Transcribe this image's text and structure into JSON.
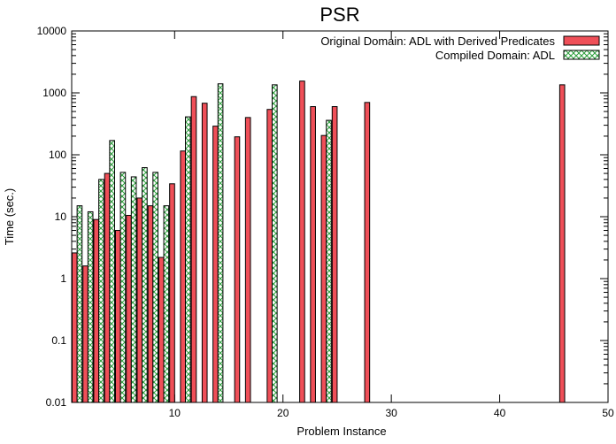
{
  "chart_data": {
    "type": "bar",
    "title": "PSR",
    "xlabel": "Problem Instance",
    "ylabel": "Time (sec.)",
    "xlim": [
      0.5,
      50
    ],
    "ylim": [
      0.01,
      10000
    ],
    "yscale": "log",
    "grid": false,
    "legend_position": "top-right",
    "x_ticks": [
      10,
      20,
      30,
      40,
      50
    ],
    "y_ticks": [
      0.01,
      0.1,
      1,
      10,
      100,
      1000,
      10000
    ],
    "x_tick_labels": [
      "10",
      "20",
      "30",
      "40",
      "50"
    ],
    "y_tick_labels": [
      "0.01",
      "0.1",
      "1",
      "10",
      "100",
      "1000",
      "10000"
    ],
    "series": [
      {
        "name": "Original Domain: ADL with Derived Predicates",
        "color": "#ef4f58",
        "pattern": "solid",
        "points": [
          [
            1,
            2.6
          ],
          [
            2,
            1.6
          ],
          [
            3,
            9
          ],
          [
            4,
            50
          ],
          [
            5,
            6
          ],
          [
            6,
            10.5
          ],
          [
            7,
            20
          ],
          [
            8,
            15
          ],
          [
            9,
            2.2
          ],
          [
            10,
            34
          ],
          [
            11,
            115
          ],
          [
            12,
            870
          ],
          [
            13,
            680
          ],
          [
            14,
            290
          ],
          [
            16,
            195
          ],
          [
            17,
            400
          ],
          [
            19,
            540
          ],
          [
            22,
            1550
          ],
          [
            23,
            600
          ],
          [
            24,
            205
          ],
          [
            25,
            600
          ],
          [
            28,
            700
          ],
          [
            46,
            1350
          ]
        ]
      },
      {
        "name": "Compiled Domain: ADL",
        "color": "#2a9d3a",
        "pattern": "crosshatch",
        "points": [
          [
            1,
            15
          ],
          [
            2,
            12
          ],
          [
            3,
            40
          ],
          [
            4,
            170
          ],
          [
            5,
            52
          ],
          [
            6,
            44
          ],
          [
            7,
            62
          ],
          [
            8,
            52
          ],
          [
            9,
            15
          ],
          [
            11,
            410
          ],
          [
            14,
            1400
          ],
          [
            19,
            1350
          ],
          [
            24,
            360
          ]
        ]
      }
    ]
  }
}
